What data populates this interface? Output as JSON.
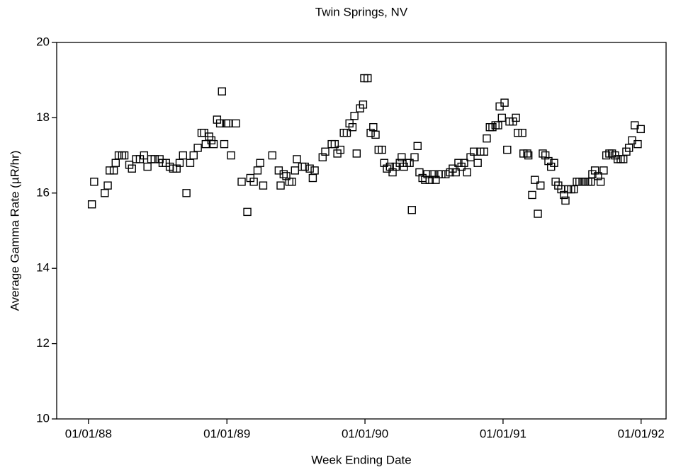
{
  "chart_data": {
    "type": "scatter",
    "title": "Twin Springs, NV",
    "x_label": "Week Ending Date",
    "y_label": "Average Gamma Rate (µR/hr)",
    "marker": "square",
    "color": "#000000",
    "xlim": [
      "1987-10-09",
      "1992-03-07"
    ],
    "xticks": [
      {
        "value": "1988-01-01",
        "label": "01/01/88"
      },
      {
        "value": "1989-01-01",
        "label": "01/01/89"
      },
      {
        "value": "1990-01-01",
        "label": "01/01/90"
      },
      {
        "value": "1991-01-01",
        "label": "01/01/91"
      },
      {
        "value": "1992-01-01",
        "label": "01/01/92"
      }
    ],
    "ylim": [
      10,
      20
    ],
    "yticks": [
      10,
      12,
      14,
      16,
      18,
      20
    ],
    "x": [
      "1988-01-10",
      "1988-01-16",
      "1988-02-13",
      "1988-02-21",
      "1988-02-26",
      "1988-03-08",
      "1988-03-13",
      "1988-03-21",
      "1988-03-30",
      "1988-04-05",
      "1988-04-18",
      "1988-04-25",
      "1988-05-06",
      "1988-05-16",
      "1988-05-27",
      "1988-06-05",
      "1988-06-15",
      "1988-06-24",
      "1988-07-07",
      "1988-07-15",
      "1988-07-24",
      "1988-08-03",
      "1988-08-12",
      "1988-08-21",
      "1988-08-29",
      "1988-09-07",
      "1988-09-16",
      "1988-09-26",
      "1988-10-05",
      "1988-10-16",
      "1988-10-26",
      "1988-11-02",
      "1988-11-06",
      "1988-11-15",
      "1988-11-21",
      "1988-11-27",
      "1988-12-06",
      "1988-12-14",
      "1988-12-19",
      "1988-12-25",
      "1988-12-30",
      "1989-01-05",
      "1989-01-12",
      "1989-01-25",
      "1989-02-09",
      "1989-02-24",
      "1989-03-04",
      "1989-03-13",
      "1989-03-23",
      "1989-03-30",
      "1989-04-07",
      "1989-05-01",
      "1989-05-18",
      "1989-05-23",
      "1989-05-31",
      "1989-06-07",
      "1989-06-15",
      "1989-06-22",
      "1989-06-30",
      "1989-07-05",
      "1989-07-19",
      "1989-07-26",
      "1989-08-08",
      "1989-08-16",
      "1989-08-21",
      "1989-09-11",
      "1989-09-18",
      "1989-10-05",
      "1989-10-13",
      "1989-10-20",
      "1989-10-28",
      "1989-11-06",
      "1989-11-14",
      "1989-11-21",
      "1989-11-29",
      "1989-12-04",
      "1989-12-10",
      "1989-12-19",
      "1989-12-27",
      "1989-12-30",
      "1990-01-08",
      "1990-01-16",
      "1990-01-23",
      "1990-01-29",
      "1990-02-06",
      "1990-02-15",
      "1990-02-21",
      "1990-02-28",
      "1990-03-08",
      "1990-03-15",
      "1990-03-23",
      "1990-04-03",
      "1990-04-08",
      "1990-04-14",
      "1990-04-22",
      "1990-04-29",
      "1990-05-05",
      "1990-05-12",
      "1990-05-20",
      "1990-05-25",
      "1990-06-02",
      "1990-06-09",
      "1990-06-15",
      "1990-06-21",
      "1990-06-30",
      "1990-07-07",
      "1990-07-15",
      "1990-07-22",
      "1990-08-02",
      "1990-08-14",
      "1990-08-21",
      "1990-08-29",
      "1990-09-05",
      "1990-09-13",
      "1990-09-20",
      "1990-09-28",
      "1990-10-07",
      "1990-10-16",
      "1990-10-26",
      "1990-11-02",
      "1990-11-12",
      "1990-11-19",
      "1990-11-27",
      "1990-12-04",
      "1990-12-12",
      "1990-12-19",
      "1990-12-23",
      "1990-12-29",
      "1991-01-05",
      "1991-01-12",
      "1991-01-18",
      "1991-01-27",
      "1991-02-04",
      "1991-02-09",
      "1991-02-21",
      "1991-02-24",
      "1991-03-06",
      "1991-03-09",
      "1991-03-19",
      "1991-03-26",
      "1991-04-03",
      "1991-04-10",
      "1991-04-16",
      "1991-04-23",
      "1991-05-01",
      "1991-05-08",
      "1991-05-16",
      "1991-05-20",
      "1991-05-27",
      "1991-06-04",
      "1991-06-11",
      "1991-06-15",
      "1991-06-22",
      "1991-06-30",
      "1991-07-07",
      "1991-07-15",
      "1991-07-22",
      "1991-07-30",
      "1991-08-06",
      "1991-08-14",
      "1991-08-21",
      "1991-08-25",
      "1991-09-01",
      "1991-09-09",
      "1991-09-16",
      "1991-09-24",
      "1991-10-01",
      "1991-10-09",
      "1991-10-16",
      "1991-10-24",
      "1991-10-31",
      "1991-11-08",
      "1991-11-15",
      "1991-11-23",
      "1991-11-30",
      "1991-12-08",
      "1991-12-15",
      "1991-12-23",
      "1991-12-31"
    ],
    "values": [
      15.7,
      16.3,
      16.0,
      16.2,
      16.6,
      16.6,
      16.8,
      17.0,
      17.0,
      17.0,
      16.75,
      16.65,
      16.9,
      16.9,
      17.0,
      16.7,
      16.9,
      16.9,
      16.9,
      16.8,
      16.8,
      16.7,
      16.65,
      16.65,
      16.8,
      17.0,
      16.0,
      16.8,
      17.0,
      17.2,
      17.6,
      17.6,
      17.3,
      17.5,
      17.4,
      17.3,
      17.95,
      17.85,
      18.7,
      17.3,
      17.85,
      17.85,
      17.0,
      17.85,
      16.3,
      15.5,
      16.4,
      16.3,
      16.6,
      16.8,
      16.2,
      17.0,
      16.6,
      16.2,
      16.5,
      16.45,
      16.3,
      16.3,
      16.6,
      16.9,
      16.7,
      16.7,
      16.65,
      16.4,
      16.6,
      16.95,
      17.1,
      17.3,
      17.3,
      17.05,
      17.15,
      17.6,
      17.6,
      17.85,
      17.75,
      18.05,
      17.05,
      18.25,
      18.35,
      19.05,
      19.05,
      17.6,
      17.75,
      17.55,
      17.15,
      17.15,
      16.8,
      16.65,
      16.7,
      16.55,
      16.7,
      16.8,
      16.95,
      16.7,
      16.8,
      16.8,
      15.55,
      16.95,
      17.25,
      16.55,
      16.4,
      16.35,
      16.5,
      16.35,
      16.5,
      16.35,
      16.5,
      16.5,
      16.5,
      16.55,
      16.65,
      16.55,
      16.8,
      16.7,
      16.8,
      16.55,
      16.95,
      17.1,
      16.8,
      17.1,
      17.1,
      17.45,
      17.75,
      17.75,
      17.8,
      17.8,
      18.3,
      18.0,
      18.4,
      17.15,
      17.9,
      17.9,
      18.0,
      17.6,
      17.6,
      17.05,
      17.05,
      17.0,
      15.95,
      16.35,
      15.45,
      16.2,
      17.05,
      17.0,
      16.85,
      16.7,
      16.8,
      16.3,
      16.2,
      16.1,
      15.95,
      15.8,
      16.1,
      16.1,
      16.1,
      16.3,
      16.3,
      16.3,
      16.3,
      16.3,
      16.3,
      16.5,
      16.6,
      16.45,
      16.3,
      16.6,
      17.0,
      17.05,
      17.05,
      17.0,
      16.9,
      16.9,
      16.9,
      17.1,
      17.2,
      17.4,
      17.8,
      17.3,
      17.7
    ]
  }
}
